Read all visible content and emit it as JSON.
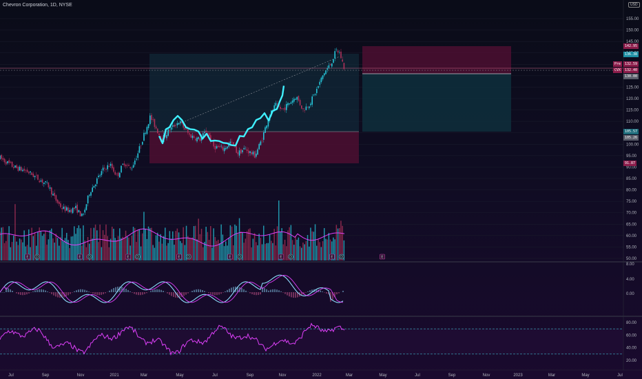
{
  "header": {
    "title": "Chevron Corporation, 1D, NYSE",
    "currency": "USD"
  },
  "price_axis": {
    "ticks": [
      "155.00",
      "150.00",
      "145.00",
      "140.00",
      "135.00",
      "130.00",
      "125.00",
      "120.00",
      "115.00",
      "110.00",
      "105.00",
      "100.00",
      "95.00",
      "90.00",
      "85.00",
      "80.00",
      "75.00",
      "70.00",
      "65.00",
      "60.00",
      "55.00",
      "50.00"
    ]
  },
  "price_badges": {
    "stop_top": "142.95",
    "last_close": "136.38",
    "pre_label": "Pre",
    "pre_value": "132.59",
    "cvx_label": "CVX",
    "cvx_value": "132.40",
    "entry": "130.00",
    "target_a": "105.57",
    "target_b": "105.26",
    "target_c": "91.87"
  },
  "macd_axis": {
    "ticks": [
      "8.00",
      "4.00",
      "0.00"
    ]
  },
  "rsi_axis": {
    "ticks": [
      "80.00",
      "60.00",
      "40.00",
      "20.00"
    ]
  },
  "time_axis": {
    "labels": [
      "Jul",
      "Sep",
      "Nov",
      "2021",
      "Mar",
      "May",
      "Jul",
      "Sep",
      "Nov",
      "2022",
      "Mar",
      "May",
      "Jul",
      "Sep",
      "Nov",
      "2023",
      "Mar",
      "May",
      "Jul"
    ]
  },
  "colors": {
    "up": "#26c6da",
    "down": "#b0315a",
    "highlight": "#40f0ff",
    "macd_signal": "#e040fb",
    "rsi": "#e040fb",
    "band": "#3cb4c8",
    "stop_zone": "#5a1034",
    "target_zone": "#0e2f3c"
  },
  "event_markers": [
    "E",
    "D",
    "E",
    "D",
    "E",
    "D",
    "E",
    "D",
    "E",
    "D",
    "E",
    "D",
    "E",
    "D",
    "E"
  ]
}
